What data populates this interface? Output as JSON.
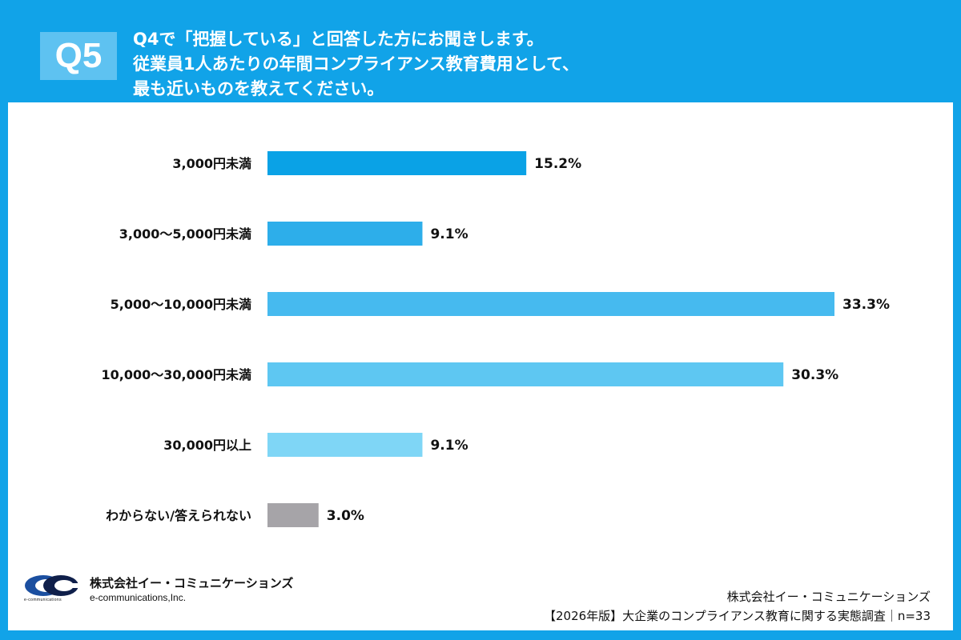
{
  "header": {
    "badge": "Q5",
    "question_lines": [
      "Q4で「把握している」と回答した方にお聞きします。",
      "従業員1人あたりの年間コンプライアンス教育費用として、",
      "最も近いものを教えてください。"
    ]
  },
  "chart_data": {
    "type": "bar",
    "orientation": "horizontal",
    "title": "",
    "xlabel": "",
    "ylabel": "",
    "xlim": [
      0,
      33.3
    ],
    "grid": false,
    "legend": "none",
    "categories": [
      "3,000円未満",
      "3,000〜5,000円未満",
      "5,000〜10,000円未満",
      "10,000〜30,000円未満",
      "30,000円以上",
      "わからない/答えられない"
    ],
    "values": [
      15.2,
      9.1,
      33.3,
      30.3,
      9.1,
      3.0
    ],
    "value_labels": [
      "15.2%",
      "9.1%",
      "33.3%",
      "30.3%",
      "9.1%",
      "3.0%"
    ],
    "colors": [
      "#0aa2e6",
      "#2daeea",
      "#46baef",
      "#5ec7f2",
      "#7fd6f6",
      "#a6a4a8"
    ]
  },
  "logo": {
    "company_jp": "株式会社イー・コミュニケーションズ",
    "company_en": "e-communications,Inc.",
    "small_text": "e-communications"
  },
  "footer": {
    "company": "株式会社イー・コミュニケーションズ",
    "survey": "【2026年版】大企業のコンプライアンス教育に関する実態調査｜n=33"
  },
  "colors": {
    "background": "#11a3e8",
    "badge": "#5ec2f1",
    "panel": "#ffffff"
  }
}
